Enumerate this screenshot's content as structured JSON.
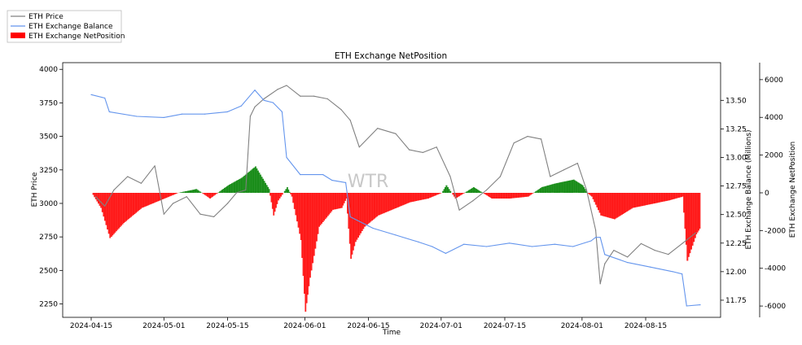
{
  "chart_data": {
    "type": "line",
    "title": "ETH Exchange NetPosition",
    "xlabel": "Time",
    "ylabel_left": "ETH Price",
    "ylabel_right1": "ETH Exchange Balance (Millions)",
    "ylabel_right2": "ETH Exchange NetPosition",
    "watermark": "WTR",
    "legend_position": "top-left",
    "legend": [
      {
        "label": "ETH Price",
        "color": "#808080",
        "kind": "line"
      },
      {
        "label": "ETH Exchange Balance",
        "color": "#6495ed",
        "kind": "line"
      },
      {
        "label": "ETH Exchange NetPosition",
        "color": "#ff0000",
        "kind": "patch"
      }
    ],
    "x_ticks": [
      "2024-04-15",
      "2024-05-01",
      "2024-05-15",
      "2024-06-01",
      "2024-06-15",
      "2024-07-01",
      "2024-07-15",
      "2024-08-01",
      "2024-08-15"
    ],
    "x_range": [
      "2024-04-15",
      "2024-08-27"
    ],
    "y_left": {
      "ticks": [
        "2250",
        "2500",
        "2750",
        "3000",
        "3250",
        "3500",
        "3750",
        "4000"
      ],
      "range": [
        2150,
        4050
      ]
    },
    "y_right1": {
      "ticks": [
        "11.75",
        "12.00",
        "12.25",
        "12.50",
        "12.75",
        "13.00",
        "13.25",
        "13.50"
      ],
      "range": [
        11.6,
        13.83
      ]
    },
    "y_right2": {
      "ticks": [
        "-6000",
        "-4000",
        "-2000",
        "0",
        "2000",
        "4000",
        "6000"
      ],
      "range": [
        -6600,
        6900
      ]
    },
    "colors": {
      "price": "#808080",
      "balance": "#6495ed",
      "negative": "#ff0000",
      "positive": "#008000"
    },
    "series": [
      {
        "name": "ETH Price",
        "axis": "left",
        "x": [
          "2024-04-16",
          "2024-04-18",
          "2024-04-20",
          "2024-04-23",
          "2024-04-26",
          "2024-04-29",
          "2024-05-01",
          "2024-05-03",
          "2024-05-06",
          "2024-05-09",
          "2024-05-12",
          "2024-05-15",
          "2024-05-17",
          "2024-05-19",
          "2024-05-20",
          "2024-05-21",
          "2024-05-23",
          "2024-05-26",
          "2024-05-28",
          "2024-05-31",
          "2024-06-03",
          "2024-06-06",
          "2024-06-09",
          "2024-06-11",
          "2024-06-13",
          "2024-06-17",
          "2024-06-21",
          "2024-06-24",
          "2024-06-27",
          "2024-06-30",
          "2024-07-03",
          "2024-07-05",
          "2024-07-08",
          "2024-07-11",
          "2024-07-14",
          "2024-07-17",
          "2024-07-20",
          "2024-07-23",
          "2024-07-25",
          "2024-07-28",
          "2024-07-31",
          "2024-08-02",
          "2024-08-04",
          "2024-08-05",
          "2024-08-06",
          "2024-08-08",
          "2024-08-11",
          "2024-08-14",
          "2024-08-17",
          "2024-08-20",
          "2024-08-23",
          "2024-08-26"
        ],
        "values": [
          3050,
          2980,
          3100,
          3200,
          3150,
          3280,
          2920,
          3000,
          3050,
          2920,
          2900,
          3000,
          3080,
          3100,
          3650,
          3720,
          3780,
          3850,
          3880,
          3800,
          3800,
          3780,
          3700,
          3620,
          3420,
          3560,
          3520,
          3400,
          3380,
          3420,
          3200,
          2950,
          3020,
          3100,
          3200,
          3450,
          3500,
          3480,
          3200,
          3250,
          3300,
          3100,
          2800,
          2400,
          2550,
          2650,
          2600,
          2700,
          2650,
          2620,
          2700,
          2780
        ]
      },
      {
        "name": "ETH Exchange Balance",
        "axis": "right1",
        "x": [
          "2024-04-15",
          "2024-04-18",
          "2024-04-19",
          "2024-04-25",
          "2024-05-01",
          "2024-05-05",
          "2024-05-10",
          "2024-05-15",
          "2024-05-18",
          "2024-05-21",
          "2024-05-23",
          "2024-05-25",
          "2024-05-27",
          "2024-05-28",
          "2024-05-31",
          "2024-06-05",
          "2024-06-07",
          "2024-06-10",
          "2024-06-11",
          "2024-06-16",
          "2024-06-21",
          "2024-06-26",
          "2024-06-29",
          "2024-07-02",
          "2024-07-06",
          "2024-07-11",
          "2024-07-16",
          "2024-07-21",
          "2024-07-26",
          "2024-07-30",
          "2024-08-03",
          "2024-08-04",
          "2024-08-05",
          "2024-08-06",
          "2024-08-11",
          "2024-08-16",
          "2024-08-21",
          "2024-08-23",
          "2024-08-24",
          "2024-08-27"
        ],
        "values": [
          13.55,
          13.52,
          13.4,
          13.36,
          13.35,
          13.38,
          13.38,
          13.4,
          13.45,
          13.59,
          13.5,
          13.48,
          13.4,
          13.0,
          12.85,
          12.85,
          12.8,
          12.78,
          12.48,
          12.38,
          12.32,
          12.26,
          12.22,
          12.16,
          12.24,
          12.22,
          12.25,
          12.22,
          12.24,
          12.22,
          12.27,
          12.3,
          12.3,
          12.15,
          12.08,
          12.04,
          12.0,
          11.98,
          11.7,
          11.71
        ]
      },
      {
        "name": "ETH Exchange NetPosition",
        "axis": "right2",
        "x": [
          "2024-04-15",
          "2024-04-17",
          "2024-04-19",
          "2024-04-22",
          "2024-04-26",
          "2024-04-30",
          "2024-05-04",
          "2024-05-08",
          "2024-05-11",
          "2024-05-15",
          "2024-05-18",
          "2024-05-21",
          "2024-05-24",
          "2024-05-25",
          "2024-05-26",
          "2024-05-28",
          "2024-05-29",
          "2024-05-31",
          "2024-06-01",
          "2024-06-02",
          "2024-06-04",
          "2024-06-07",
          "2024-06-09",
          "2024-06-10",
          "2024-06-11",
          "2024-06-12",
          "2024-06-14",
          "2024-06-17",
          "2024-06-20",
          "2024-06-24",
          "2024-06-28",
          "2024-07-01",
          "2024-07-02",
          "2024-07-04",
          "2024-07-08",
          "2024-07-12",
          "2024-07-16",
          "2024-07-20",
          "2024-07-23",
          "2024-07-26",
          "2024-07-30",
          "2024-08-01",
          "2024-08-02",
          "2024-08-03",
          "2024-08-05",
          "2024-08-08",
          "2024-08-12",
          "2024-08-16",
          "2024-08-20",
          "2024-08-23",
          "2024-08-24",
          "2024-08-26",
          "2024-08-27"
        ],
        "values": [
          0,
          -800,
          -2400,
          -1600,
          -800,
          -400,
          0,
          200,
          -300,
          400,
          800,
          1400,
          200,
          -1200,
          -400,
          300,
          -200,
          -2500,
          -6300,
          -4500,
          -1800,
          -900,
          -800,
          -300,
          -3500,
          -2600,
          -1800,
          -1200,
          -900,
          -500,
          -300,
          0,
          400,
          -300,
          300,
          -300,
          -300,
          -200,
          300,
          500,
          700,
          400,
          0,
          -200,
          -1200,
          -1400,
          -800,
          -600,
          -400,
          -200,
          -3600,
          -2200,
          -1800
        ]
      }
    ]
  }
}
